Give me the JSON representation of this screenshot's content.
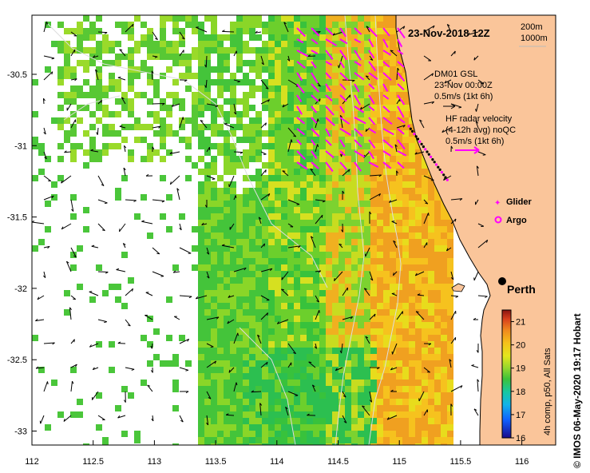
{
  "title": "23-Nov-2018 12Z",
  "isobath_labels": [
    "200m",
    "1000m"
  ],
  "axes": {
    "x_ticks": [
      "112",
      "112.5",
      "113",
      "113.5",
      "114",
      "114.5",
      "115",
      "115.5",
      "116"
    ],
    "y_ticks": [
      "-30.5",
      "-31",
      "-31.5",
      "-32",
      "-32.5",
      "-33"
    ],
    "xlim": [
      112,
      116.3
    ],
    "ylim": [
      -33.1,
      -30.1
    ]
  },
  "model_legend": {
    "line1": "DM01 GSL",
    "line2": "23-Nov 00:00Z",
    "line3": "0.5m/s (1kt 6h)"
  },
  "radar_legend": {
    "line1": "HF radar velocity",
    "line2": "(4-12h avg) noQC",
    "line3": "0.5m/s (1kt 6h)"
  },
  "glider_label": "Glider",
  "argo_label": "Argo",
  "city": {
    "name": "Perth",
    "lon": 115.86,
    "lat": -31.95
  },
  "colorbar": {
    "label": "4h comp, p50, All Sats",
    "ticks": [
      "21",
      "20",
      "19",
      "18",
      "17",
      "16"
    ],
    "min": 16,
    "max": 21.5
  },
  "credit": "© IMOS 06-May-2020 19:17 Hobart",
  "colors": {
    "land": "#fac59a",
    "radar_vector": "#ff00ff",
    "model_vector": "#000000",
    "isobath": "#dddddd"
  }
}
